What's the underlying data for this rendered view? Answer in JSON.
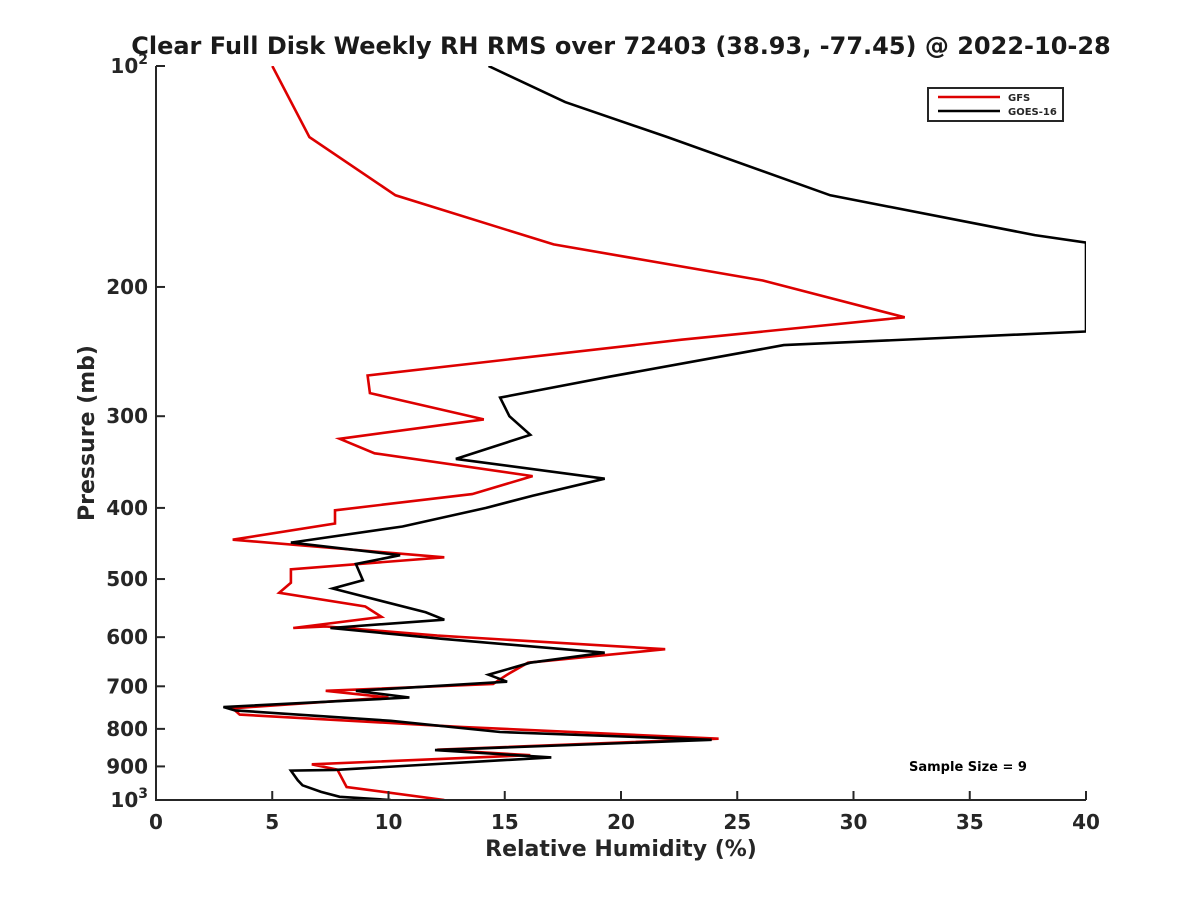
{
  "chart_data": {
    "type": "line",
    "title": "Clear Full Disk Weekly RH RMS over 72403 (38.93, -77.45) @ 2022-10-28",
    "xlabel": "Relative Humidity (%)",
    "ylabel": "Pressure (mb)",
    "xlim": [
      0,
      40
    ],
    "ylim": [
      100,
      1000
    ],
    "y_scale": "log",
    "y_reversed": true,
    "x_ticks": [
      0,
      5,
      10,
      15,
      20,
      25,
      30,
      35,
      40
    ],
    "x_tick_labels": [
      "0",
      "5",
      "10",
      "15",
      "20",
      "25",
      "30",
      "35",
      "40"
    ],
    "y_ticks": [
      100,
      200,
      300,
      400,
      500,
      600,
      700,
      800,
      900,
      1000
    ],
    "y_tick_labels": [
      {
        "base": "10",
        "exp": "2"
      },
      {
        "base": "200",
        "exp": ""
      },
      {
        "base": "300",
        "exp": ""
      },
      {
        "base": "400",
        "exp": ""
      },
      {
        "base": "500",
        "exp": ""
      },
      {
        "base": "600",
        "exp": ""
      },
      {
        "base": "700",
        "exp": ""
      },
      {
        "base": "800",
        "exp": ""
      },
      {
        "base": "900",
        "exp": ""
      },
      {
        "base": "10",
        "exp": "3"
      }
    ],
    "grid": false,
    "legend_position": "top-right",
    "annotation": "Sample Size = 9",
    "series": [
      {
        "name": "GFS",
        "color": "#dd0000",
        "points": [
          [
            5.0,
            100
          ],
          [
            6.6,
            125
          ],
          [
            10.3,
            150
          ],
          [
            17.1,
            175
          ],
          [
            26.1,
            196
          ],
          [
            32.2,
            220
          ],
          [
            22.6,
            236
          ],
          [
            9.1,
            264
          ],
          [
            9.2,
            279
          ],
          [
            14.1,
            303
          ],
          [
            7.9,
            322
          ],
          [
            9.4,
            337
          ],
          [
            16.2,
            362
          ],
          [
            13.6,
            383
          ],
          [
            7.7,
            403
          ],
          [
            7.7,
            420
          ],
          [
            3.3,
            442
          ],
          [
            12.4,
            467
          ],
          [
            5.8,
            485
          ],
          [
            5.8,
            506
          ],
          [
            5.3,
            522
          ],
          [
            9.0,
            545
          ],
          [
            9.7,
            563
          ],
          [
            5.9,
            583
          ],
          [
            7.3,
            580
          ],
          [
            12.1,
            597
          ],
          [
            21.9,
            623
          ],
          [
            16.0,
            650
          ],
          [
            15.1,
            675
          ],
          [
            14.5,
            695
          ],
          [
            7.3,
            710
          ],
          [
            10.0,
            725
          ],
          [
            3.3,
            750
          ],
          [
            3.6,
            765
          ],
          [
            13.1,
            795
          ],
          [
            24.2,
            825
          ],
          [
            12.1,
            854
          ],
          [
            16.1,
            869
          ],
          [
            6.7,
            894
          ],
          [
            7.8,
            909
          ],
          [
            8.2,
            960
          ],
          [
            12.4,
            1000
          ]
        ]
      },
      {
        "name": "GOES-16",
        "color": "#000000",
        "points": [
          [
            14.3,
            100
          ],
          [
            17.6,
            112
          ],
          [
            22.0,
            125
          ],
          [
            29.0,
            150
          ],
          [
            37.8,
            170
          ],
          [
            40.0,
            174
          ],
          [
            40.0,
            230
          ],
          [
            27.0,
            240
          ],
          [
            19.5,
            265
          ],
          [
            14.8,
            283
          ],
          [
            15.2,
            300
          ],
          [
            16.1,
            318
          ],
          [
            12.9,
            343
          ],
          [
            19.3,
            365
          ],
          [
            16.2,
            385
          ],
          [
            14.2,
            400
          ],
          [
            10.6,
            424
          ],
          [
            5.8,
            446
          ],
          [
            10.5,
            464
          ],
          [
            8.6,
            477
          ],
          [
            8.9,
            502
          ],
          [
            7.6,
            515
          ],
          [
            11.6,
            555
          ],
          [
            12.4,
            568
          ],
          [
            7.5,
            583
          ],
          [
            12.3,
            603
          ],
          [
            19.3,
            630
          ],
          [
            16.1,
            650
          ],
          [
            14.3,
            675
          ],
          [
            15.1,
            690
          ],
          [
            8.6,
            710
          ],
          [
            10.9,
            725
          ],
          [
            2.9,
            747
          ],
          [
            3.4,
            755
          ],
          [
            10.1,
            780
          ],
          [
            14.8,
            808
          ],
          [
            23.9,
            828
          ],
          [
            12.0,
            855
          ],
          [
            17.0,
            875
          ],
          [
            7.7,
            910
          ],
          [
            5.8,
            912
          ],
          [
            6.1,
            940
          ],
          [
            6.3,
            955
          ],
          [
            7.1,
            975
          ],
          [
            7.9,
            990
          ],
          [
            10.1,
            1000
          ]
        ]
      }
    ]
  }
}
